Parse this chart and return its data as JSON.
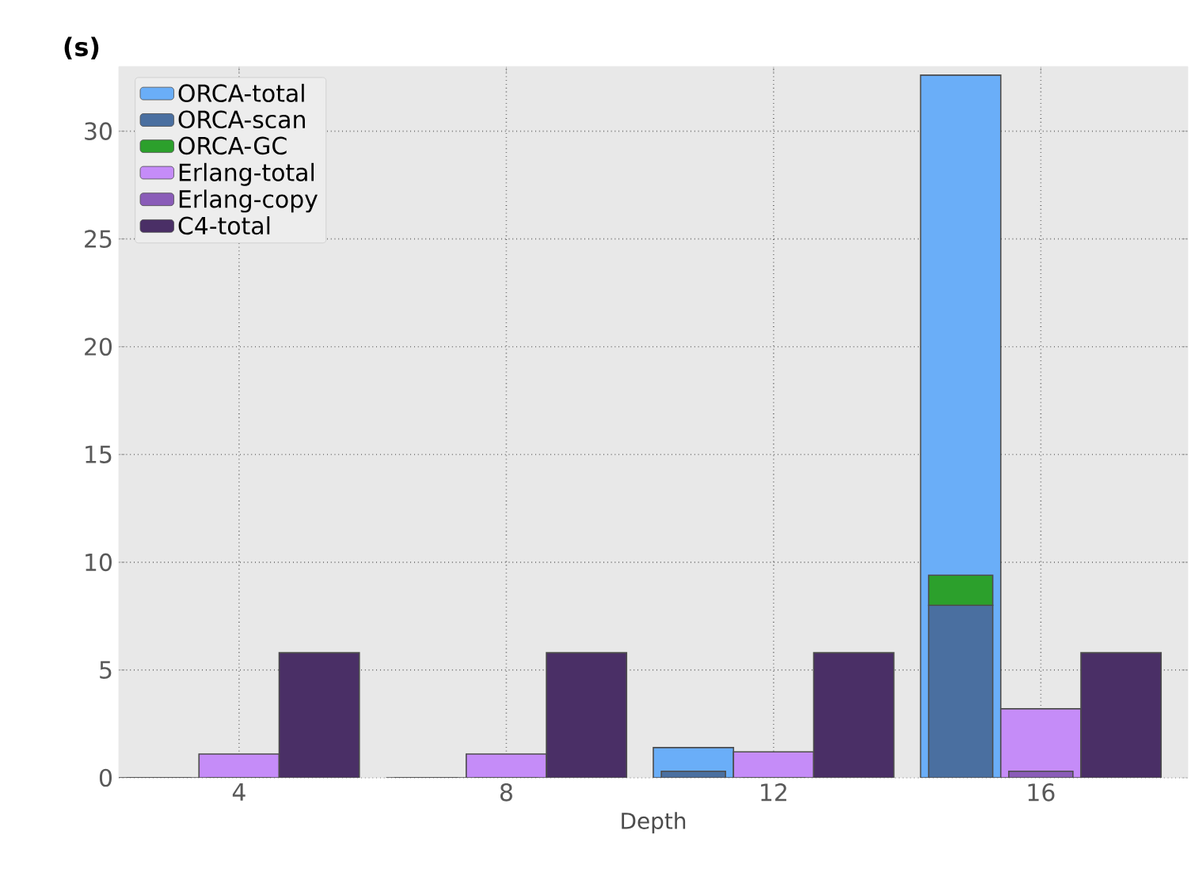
{
  "chart_data": {
    "type": "bar",
    "ylabel": "(s)",
    "xlabel": "Depth",
    "categories": [
      "4",
      "8",
      "12",
      "16"
    ],
    "series": [
      {
        "name": "ORCA-total",
        "color": "#6aaef8",
        "values": [
          0,
          0,
          1.4,
          32.6
        ]
      },
      {
        "name": "ORCA-scan",
        "color": "#4a6fa0",
        "values": [
          0,
          0,
          0.3,
          8.0
        ]
      },
      {
        "name": "ORCA-GC",
        "color": "#2ca02c",
        "values": [
          null,
          null,
          null,
          1.4
        ],
        "base": [
          null,
          null,
          null,
          8.0
        ]
      },
      {
        "name": "Erlang-total",
        "color": "#c58cf8",
        "values": [
          1.1,
          1.1,
          1.2,
          3.2
        ]
      },
      {
        "name": "Erlang-copy",
        "color": "#8a5cb8",
        "values": [
          0,
          0,
          0,
          0.3
        ]
      },
      {
        "name": "C4-total",
        "color": "#4a2f66",
        "values": [
          5.8,
          5.8,
          5.8,
          5.8
        ]
      }
    ],
    "ylim": [
      0,
      33
    ],
    "yticks": [
      0,
      5,
      10,
      15,
      20,
      25,
      30
    ],
    "grid": true,
    "legend": "top left"
  }
}
